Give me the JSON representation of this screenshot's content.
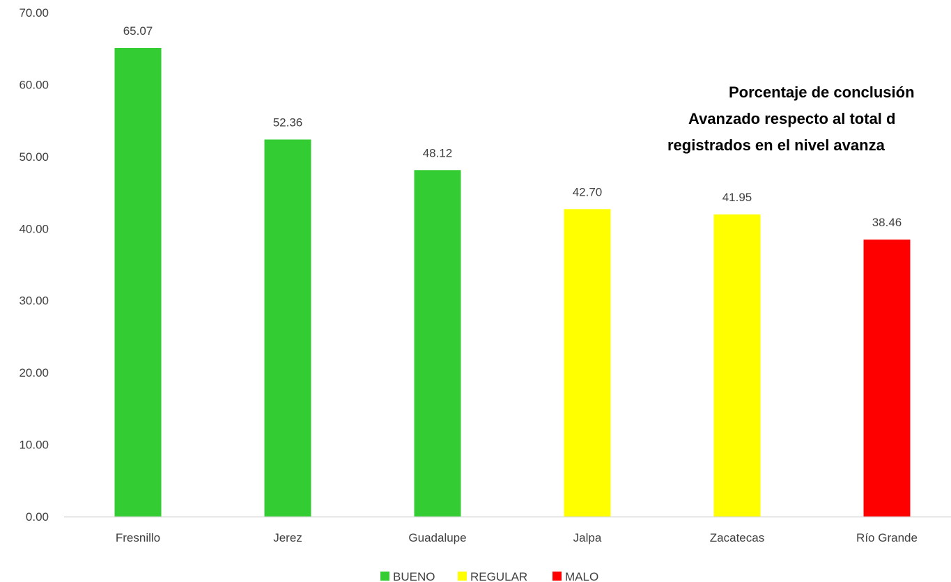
{
  "chart_data": {
    "type": "bar",
    "title": [
      "Porcentaje de conclusión",
      "Avanzado respecto al total d",
      "registrados en el nivel avanza"
    ],
    "categories": [
      "Fresnillo",
      "Jerez",
      "Guadalupe",
      "Jalpa",
      "Zacatecas",
      "Río Grande"
    ],
    "values": [
      65.07,
      52.36,
      48.12,
      42.7,
      41.95,
      38.46
    ],
    "value_labels": [
      "65.07",
      "52.36",
      "48.12",
      "42.70",
      "41.95",
      "38.46"
    ],
    "bar_classes": [
      "BUENO",
      "BUENO",
      "BUENO",
      "REGULAR",
      "REGULAR",
      "MALO"
    ],
    "ylim": [
      0,
      70
    ],
    "yticks": [
      "0.00",
      "10.00",
      "20.00",
      "30.00",
      "40.00",
      "50.00",
      "60.00",
      "70.00"
    ],
    "grid": false,
    "legend": {
      "position": "bottom",
      "items": [
        {
          "label": "BUENO",
          "color": "#33cc33"
        },
        {
          "label": "REGULAR",
          "color": "#ffff00"
        },
        {
          "label": "MALO",
          "color": "#ff0000"
        }
      ]
    },
    "colors": {
      "BUENO": "#33cc33",
      "REGULAR": "#ffff00",
      "MALO": "#ff0000",
      "axis": "#d9d9d9"
    }
  }
}
